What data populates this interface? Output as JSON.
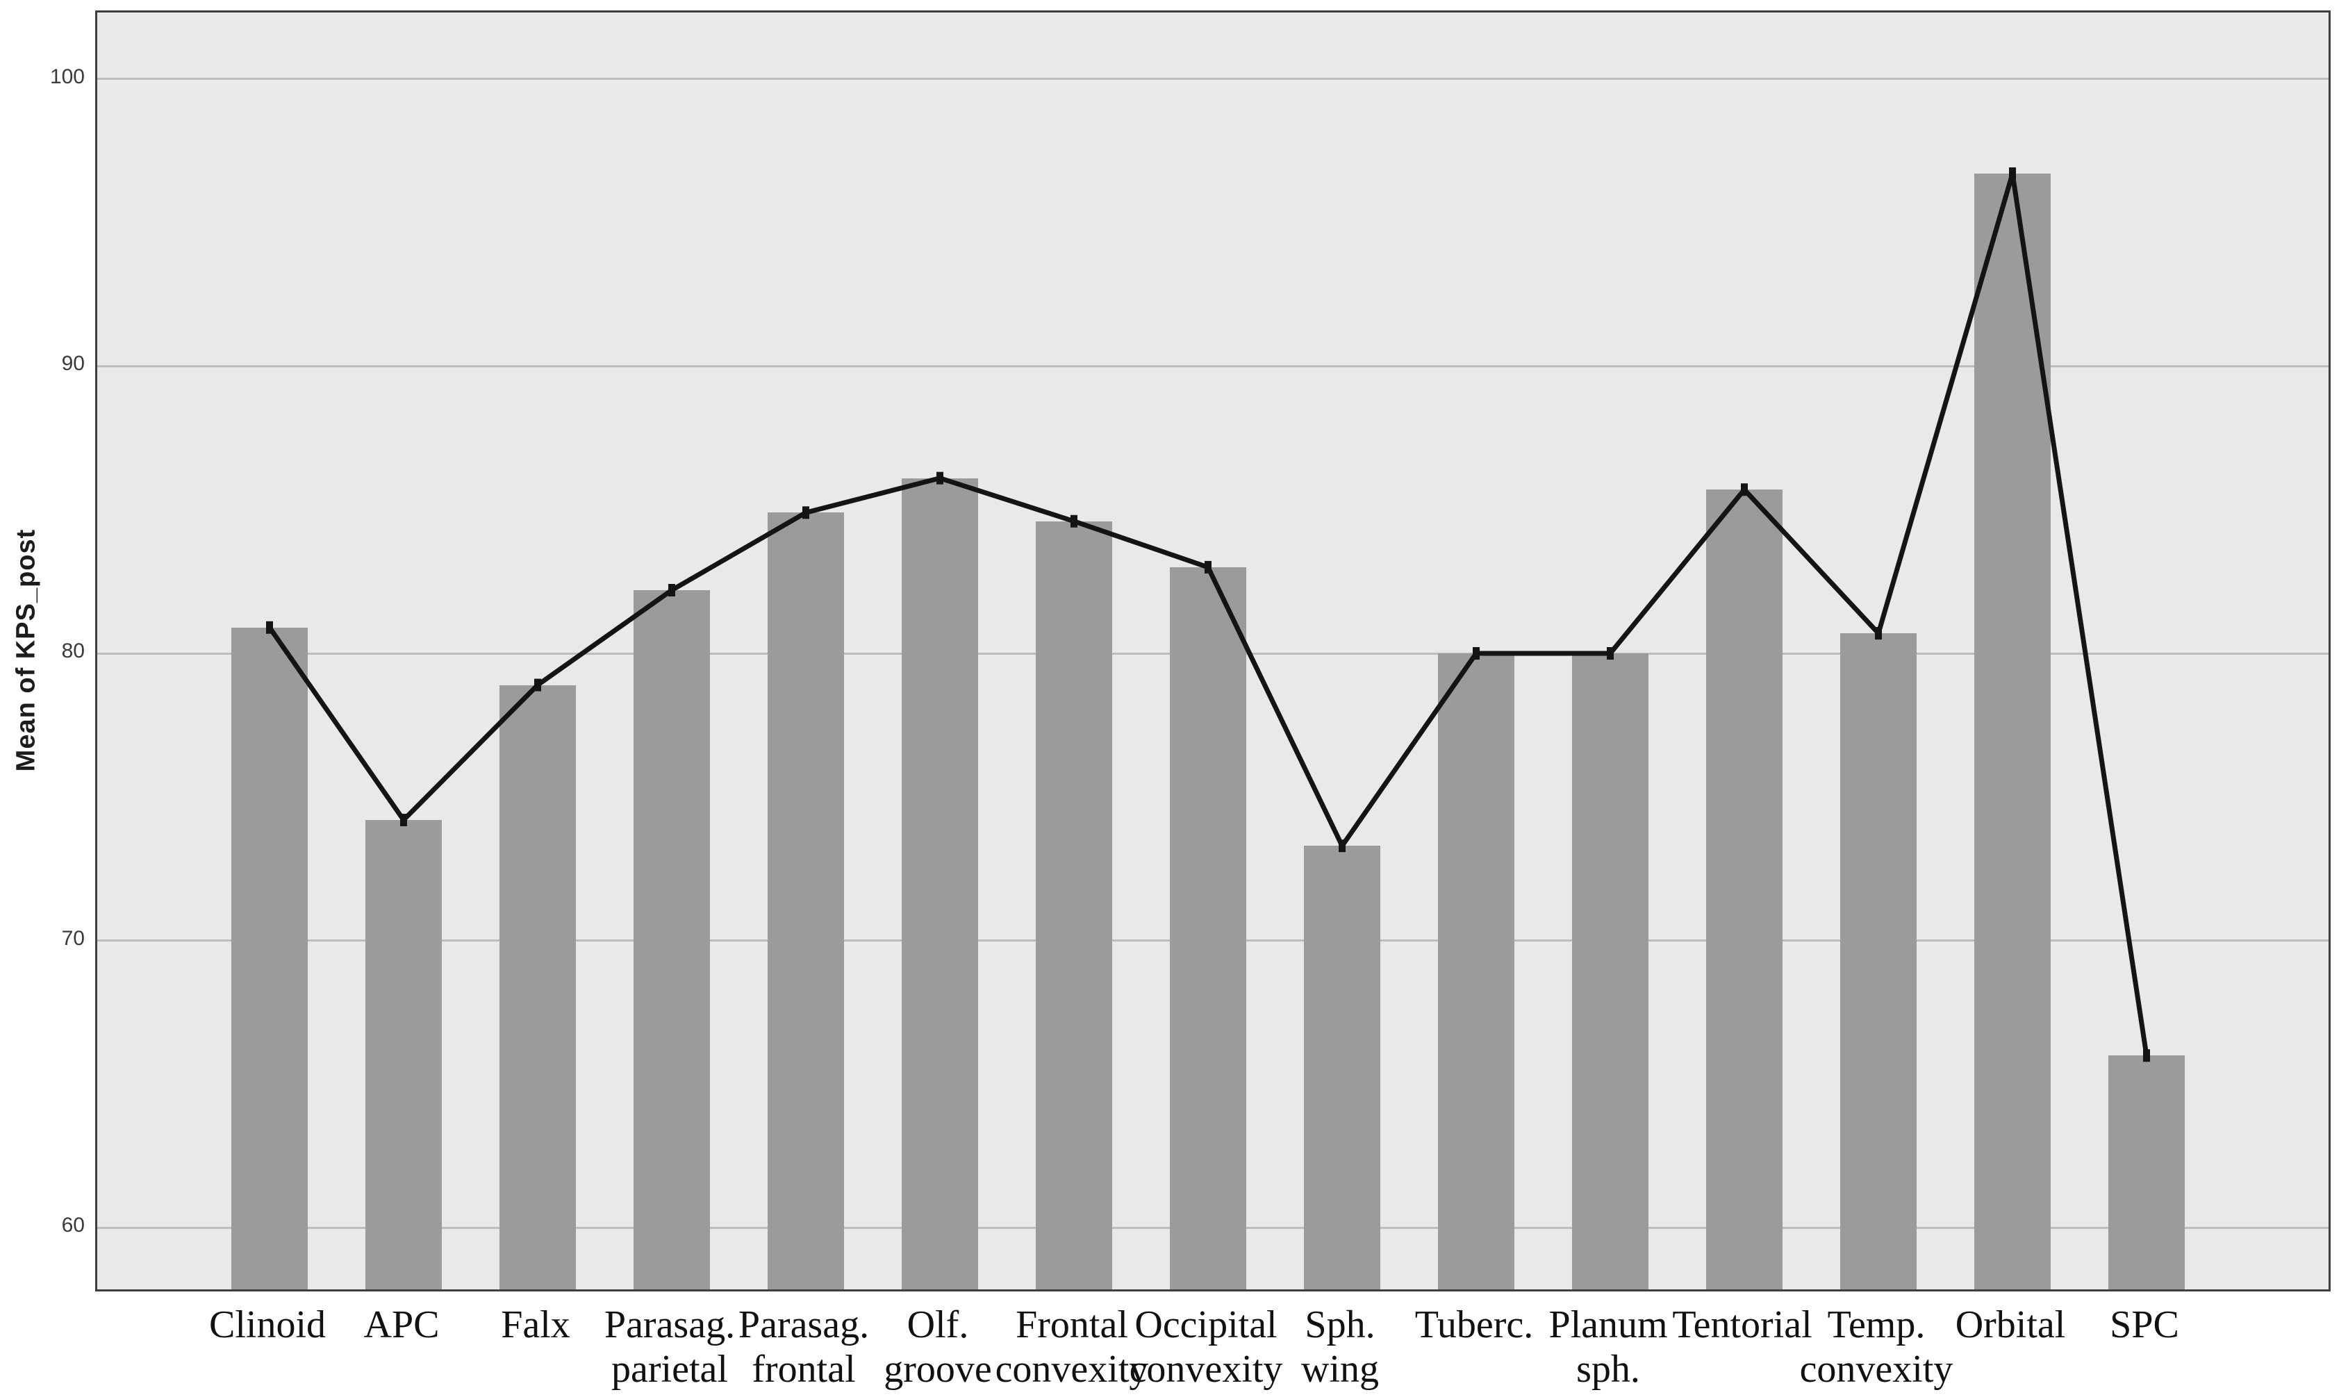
{
  "figure": {
    "background_color": "#ffffff"
  },
  "chart_data": {
    "type": "bar",
    "subtype": "bar-with-line-overlay",
    "title": "",
    "xlabel": "",
    "ylabel": "Mean of KPS_post",
    "ylim": [
      57.86,
      102.31
    ],
    "yticks": [
      60,
      70,
      80,
      90,
      100
    ],
    "ytick_labels": [
      "60",
      "70",
      "80",
      "90",
      "100"
    ],
    "grid": "horizontal",
    "legend_position": "none",
    "categories": [
      "Clinoid",
      "APC",
      "Falx",
      "Parasag. parietal",
      "Parasag. frontal",
      "Olf. groove",
      "Frontal convexity",
      "Occipital convexity",
      "Sph. wing",
      "Tuberc.",
      "Planum sph.",
      "Tentorial",
      "Temp. convexity",
      "Orbital",
      "SPC"
    ],
    "categories_lines": [
      [
        "Clinoid"
      ],
      [
        "APC"
      ],
      [
        "Falx"
      ],
      [
        "Parasag.",
        "parietal"
      ],
      [
        "Parasag.",
        "frontal"
      ],
      [
        "Olf.",
        "groove"
      ],
      [
        "Frontal",
        "convexity"
      ],
      [
        "Occipital",
        "convexity"
      ],
      [
        "Sph.",
        "wing"
      ],
      [
        "Tuberc."
      ],
      [
        "Planum",
        "sph."
      ],
      [
        "Tentorial"
      ],
      [
        "Temp.",
        "convexity"
      ],
      [
        "Orbital"
      ],
      [
        "SPC"
      ]
    ],
    "series": [
      {
        "name": "Mean of KPS_post",
        "values": [
          80.9,
          74.2,
          78.9,
          82.2,
          84.9,
          86.1,
          84.6,
          83.0,
          73.3,
          80.0,
          80.0,
          85.7,
          80.7,
          96.7,
          66.0
        ]
      }
    ],
    "line_overlay_follows_bar_means": true
  },
  "colors": {
    "bar_fill": "#9b9b9b",
    "plot_background": "#e9e9e9",
    "gridline": "#bdbdbd",
    "frame_border": "#3f3f3f",
    "overlay_line": "#141414",
    "tick_text": "#3a3a3a",
    "label_text": "#111111",
    "outer_background": "#ffffff"
  }
}
